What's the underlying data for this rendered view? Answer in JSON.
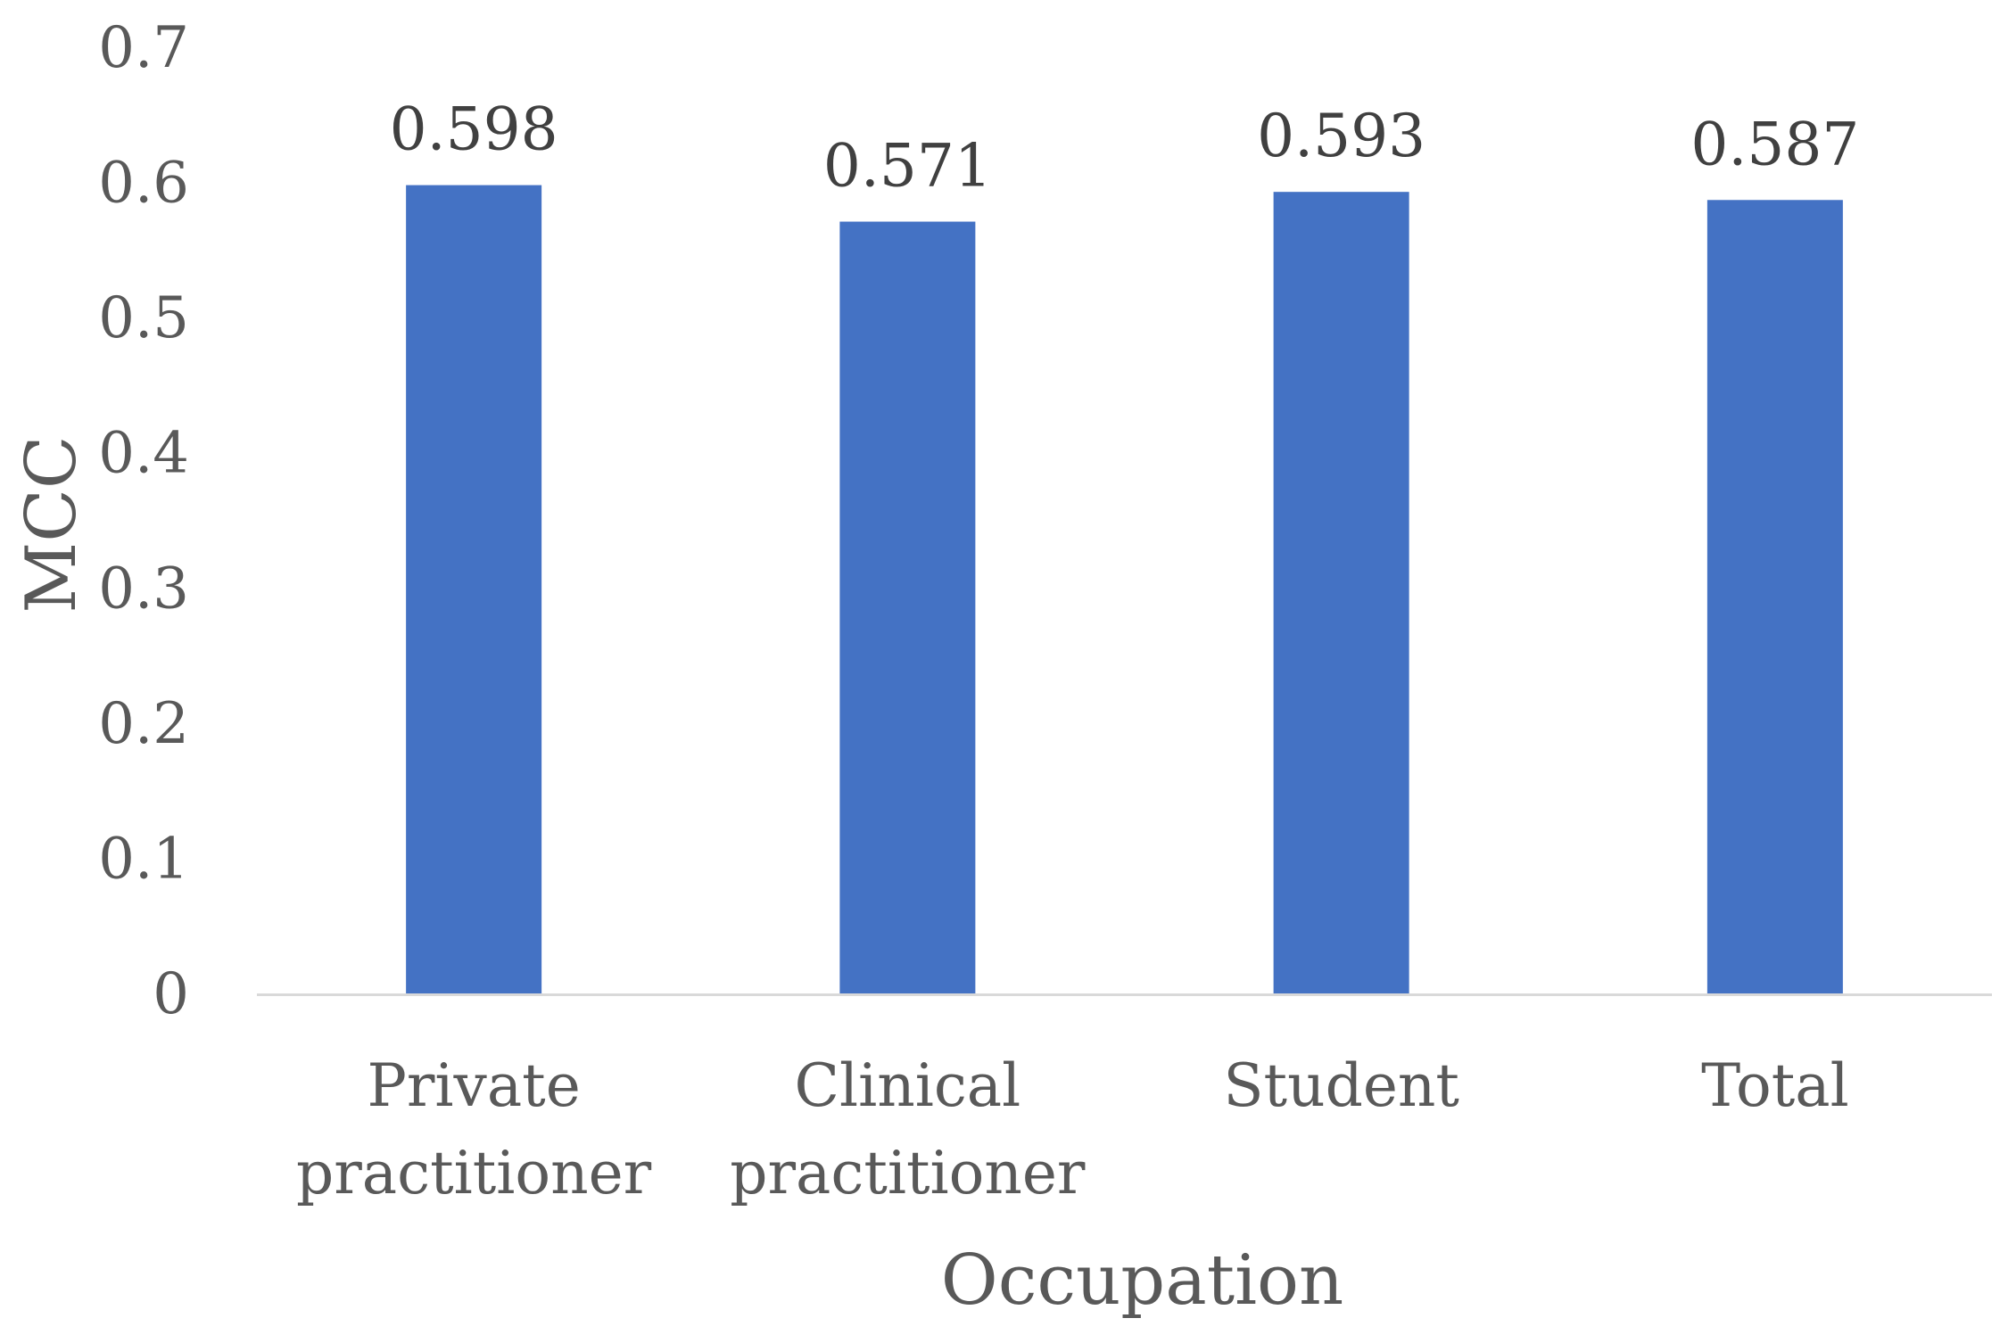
{
  "chart_data": {
    "type": "bar",
    "title": "",
    "xlabel": "Occupation",
    "ylabel": "MCC",
    "categories": [
      [
        "Private",
        "practitioner"
      ],
      [
        "Clinical",
        "practitioner"
      ],
      [
        "Student"
      ],
      [
        "Total"
      ]
    ],
    "values": [
      0.598,
      0.571,
      0.593,
      0.587
    ],
    "value_labels": [
      "0.598",
      "0.571",
      "0.593",
      "0.587"
    ],
    "ylim": [
      0,
      0.7
    ],
    "yticks": [
      "0",
      "0.1",
      "0.2",
      "0.3",
      "0.4",
      "0.5",
      "0.6",
      "0.7"
    ],
    "grid": false,
    "legend": "none",
    "colors": {
      "bar": "#4472C4",
      "axis_line": "#D9D9D9",
      "text": "#595959",
      "data_label": "#404040"
    }
  }
}
